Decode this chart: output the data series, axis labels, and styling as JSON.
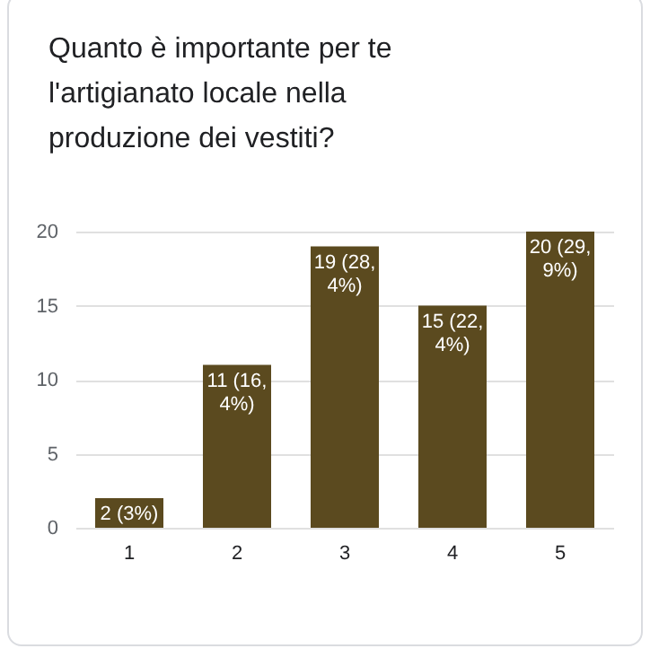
{
  "chart_data": {
    "type": "bar",
    "title": "Quanto è importante per te l'artigianato locale nella produzione dei vestiti?",
    "categories": [
      "1",
      "2",
      "3",
      "4",
      "5"
    ],
    "values": [
      2,
      11,
      19,
      15,
      20
    ],
    "value_labels": [
      "2 (3%)",
      "11 (16,4%)",
      "19 (28,4%)",
      "15 (22,4%)",
      "20 (29,9%)"
    ],
    "color": "#5b4a1f",
    "ylim": [
      0,
      20
    ],
    "yticks": [
      0,
      5,
      10,
      15,
      20
    ],
    "grid": "y"
  }
}
